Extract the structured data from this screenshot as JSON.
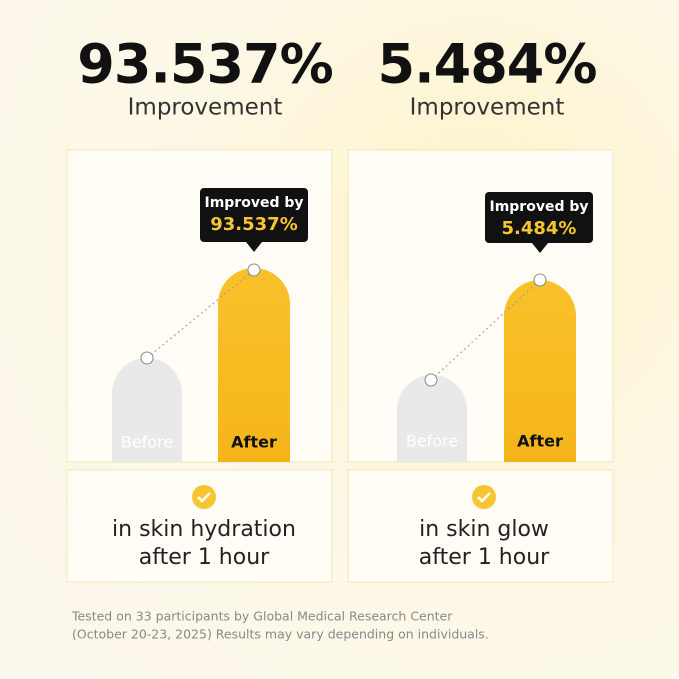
{
  "panels": [
    {
      "improvement": "93.537%",
      "headline_caption": "Improvement",
      "badge_label": "Improved by",
      "bars": [
        "Before",
        "After"
      ],
      "caption": [
        "in skin hydration",
        "after 1 hour"
      ]
    },
    {
      "improvement": "5.484%",
      "headline_caption": "Improvement",
      "badge_label": "Improved by",
      "bars": [
        "Before",
        "After"
      ],
      "caption": [
        "in skin glow",
        "after 1 hour"
      ]
    }
  ],
  "footnote": [
    "Tested on 33 participants by Global Medical Research Center",
    "(October 20-23, 2025) Results may vary depending on individuals."
  ]
}
